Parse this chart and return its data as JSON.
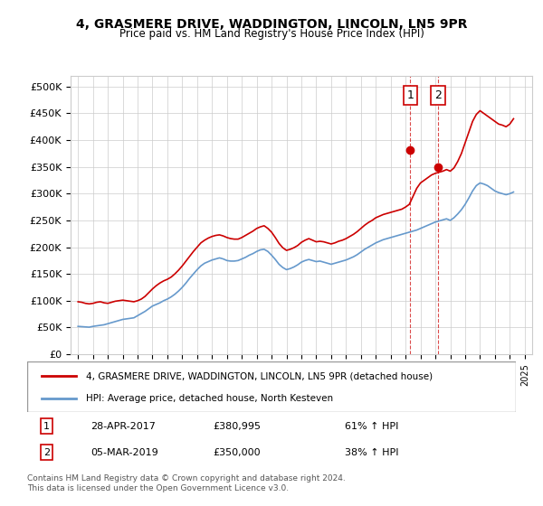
{
  "title": "4, GRASMERE DRIVE, WADDINGTON, LINCOLN, LN5 9PR",
  "subtitle": "Price paid vs. HM Land Registry's House Price Index (HPI)",
  "legend_line1": "4, GRASMERE DRIVE, WADDINGTON, LINCOLN, LN5 9PR (detached house)",
  "legend_line2": "HPI: Average price, detached house, North Kesteven",
  "transaction1_label": "1",
  "transaction1_date": "28-APR-2017",
  "transaction1_price": "£380,995",
  "transaction1_hpi": "61% ↑ HPI",
  "transaction1_x": 2017.32,
  "transaction1_y": 380995,
  "transaction2_label": "2",
  "transaction2_date": "05-MAR-2019",
  "transaction2_price": "£350,000",
  "transaction2_hpi": "38% ↑ HPI",
  "transaction2_x": 2019.17,
  "transaction2_y": 350000,
  "footer": "Contains HM Land Registry data © Crown copyright and database right 2024.\nThis data is licensed under the Open Government Licence v3.0.",
  "hpi_color": "#6699cc",
  "price_color": "#cc0000",
  "vline_color": "#cc0000",
  "bg_color": "#ffffff",
  "grid_color": "#cccccc",
  "ylim": [
    0,
    520000
  ],
  "xlim": [
    1994.5,
    2025.5
  ],
  "yticks": [
    0,
    50000,
    100000,
    150000,
    200000,
    250000,
    300000,
    350000,
    400000,
    450000,
    500000
  ],
  "ytick_labels": [
    "£0",
    "£50K",
    "£100K",
    "£150K",
    "£200K",
    "£250K",
    "£300K",
    "£350K",
    "£400K",
    "£450K",
    "£500K"
  ],
  "hpi_years": [
    1995.0,
    1995.25,
    1995.5,
    1995.75,
    1996.0,
    1996.25,
    1996.5,
    1996.75,
    1997.0,
    1997.25,
    1997.5,
    1997.75,
    1998.0,
    1998.25,
    1998.5,
    1998.75,
    1999.0,
    1999.25,
    1999.5,
    1999.75,
    2000.0,
    2000.25,
    2000.5,
    2000.75,
    2001.0,
    2001.25,
    2001.5,
    2001.75,
    2002.0,
    2002.25,
    2002.5,
    2002.75,
    2003.0,
    2003.25,
    2003.5,
    2003.75,
    2004.0,
    2004.25,
    2004.5,
    2004.75,
    2005.0,
    2005.25,
    2005.5,
    2005.75,
    2006.0,
    2006.25,
    2006.5,
    2006.75,
    2007.0,
    2007.25,
    2007.5,
    2007.75,
    2008.0,
    2008.25,
    2008.5,
    2008.75,
    2009.0,
    2009.25,
    2009.5,
    2009.75,
    2010.0,
    2010.25,
    2010.5,
    2010.75,
    2011.0,
    2011.25,
    2011.5,
    2011.75,
    2012.0,
    2012.25,
    2012.5,
    2012.75,
    2013.0,
    2013.25,
    2013.5,
    2013.75,
    2014.0,
    2014.25,
    2014.5,
    2014.75,
    2015.0,
    2015.25,
    2015.5,
    2015.75,
    2016.0,
    2016.25,
    2016.5,
    2016.75,
    2017.0,
    2017.25,
    2017.5,
    2017.75,
    2018.0,
    2018.25,
    2018.5,
    2018.75,
    2019.0,
    2019.25,
    2019.5,
    2019.75,
    2020.0,
    2020.25,
    2020.5,
    2020.75,
    2021.0,
    2021.25,
    2021.5,
    2021.75,
    2022.0,
    2022.25,
    2022.5,
    2022.75,
    2023.0,
    2023.25,
    2023.5,
    2023.75,
    2024.0,
    2024.25
  ],
  "hpi_values": [
    52000,
    51500,
    51000,
    50500,
    52000,
    53000,
    54000,
    55000,
    57000,
    59000,
    61000,
    63000,
    65000,
    66000,
    67000,
    68000,
    72000,
    76000,
    80000,
    85000,
    90000,
    93000,
    96000,
    100000,
    103000,
    107000,
    112000,
    118000,
    125000,
    133000,
    142000,
    150000,
    158000,
    165000,
    170000,
    173000,
    176000,
    178000,
    180000,
    178000,
    175000,
    174000,
    174000,
    175000,
    178000,
    181000,
    185000,
    188000,
    192000,
    195000,
    196000,
    192000,
    185000,
    177000,
    168000,
    162000,
    158000,
    160000,
    163000,
    167000,
    172000,
    175000,
    177000,
    175000,
    173000,
    174000,
    172000,
    170000,
    168000,
    170000,
    172000,
    174000,
    176000,
    179000,
    182000,
    186000,
    191000,
    196000,
    200000,
    204000,
    208000,
    211000,
    214000,
    216000,
    218000,
    220000,
    222000,
    224000,
    226000,
    228000,
    230000,
    232000,
    235000,
    238000,
    241000,
    244000,
    247000,
    249000,
    251000,
    253000,
    250000,
    255000,
    262000,
    270000,
    280000,
    292000,
    305000,
    315000,
    320000,
    318000,
    315000,
    310000,
    305000,
    302000,
    300000,
    298000,
    300000,
    303000
  ],
  "price_years": [
    1995.0,
    1995.25,
    1995.5,
    1995.75,
    1996.0,
    1996.25,
    1996.5,
    1996.75,
    1997.0,
    1997.25,
    1997.5,
    1997.75,
    1998.0,
    1998.25,
    1998.5,
    1998.75,
    1999.0,
    1999.25,
    1999.5,
    1999.75,
    2000.0,
    2000.25,
    2000.5,
    2000.75,
    2001.0,
    2001.25,
    2001.5,
    2001.75,
    2002.0,
    2002.25,
    2002.5,
    2002.75,
    2003.0,
    2003.25,
    2003.5,
    2003.75,
    2004.0,
    2004.25,
    2004.5,
    2004.75,
    2005.0,
    2005.25,
    2005.5,
    2005.75,
    2006.0,
    2006.25,
    2006.5,
    2006.75,
    2007.0,
    2007.25,
    2007.5,
    2007.75,
    2008.0,
    2008.25,
    2008.5,
    2008.75,
    2009.0,
    2009.25,
    2009.5,
    2009.75,
    2010.0,
    2010.25,
    2010.5,
    2010.75,
    2011.0,
    2011.25,
    2011.5,
    2011.75,
    2012.0,
    2012.25,
    2012.5,
    2012.75,
    2013.0,
    2013.25,
    2013.5,
    2013.75,
    2014.0,
    2014.25,
    2014.5,
    2014.75,
    2015.0,
    2015.25,
    2015.5,
    2015.75,
    2016.0,
    2016.25,
    2016.5,
    2016.75,
    2017.0,
    2017.25,
    2017.5,
    2017.75,
    2018.0,
    2018.25,
    2018.5,
    2018.75,
    2019.0,
    2019.25,
    2019.5,
    2019.75,
    2020.0,
    2020.25,
    2020.5,
    2020.75,
    2021.0,
    2021.25,
    2021.5,
    2021.75,
    2022.0,
    2022.25,
    2022.5,
    2022.75,
    2023.0,
    2023.25,
    2023.5,
    2023.75,
    2024.0,
    2024.25
  ],
  "price_values": [
    98000,
    97000,
    95000,
    94000,
    95000,
    97000,
    98000,
    96000,
    95000,
    97000,
    99000,
    100000,
    101000,
    100000,
    99000,
    98000,
    100000,
    103000,
    108000,
    115000,
    122000,
    128000,
    133000,
    137000,
    140000,
    144000,
    150000,
    157000,
    165000,
    174000,
    183000,
    192000,
    200000,
    208000,
    213000,
    217000,
    220000,
    222000,
    223000,
    221000,
    218000,
    216000,
    215000,
    215000,
    218000,
    222000,
    226000,
    230000,
    235000,
    238000,
    240000,
    235000,
    228000,
    218000,
    207000,
    199000,
    194000,
    196000,
    199000,
    203000,
    209000,
    213000,
    216000,
    213000,
    210000,
    211000,
    210000,
    208000,
    206000,
    208000,
    211000,
    213000,
    216000,
    220000,
    224000,
    229000,
    235000,
    241000,
    246000,
    250000,
    255000,
    258000,
    261000,
    263000,
    265000,
    267000,
    269000,
    271000,
    275000,
    280000,
    295000,
    310000,
    320000,
    325000,
    330000,
    335000,
    338000,
    340000,
    342000,
    345000,
    342000,
    348000,
    360000,
    375000,
    395000,
    415000,
    435000,
    448000,
    455000,
    450000,
    445000,
    440000,
    435000,
    430000,
    428000,
    425000,
    430000,
    440000
  ]
}
